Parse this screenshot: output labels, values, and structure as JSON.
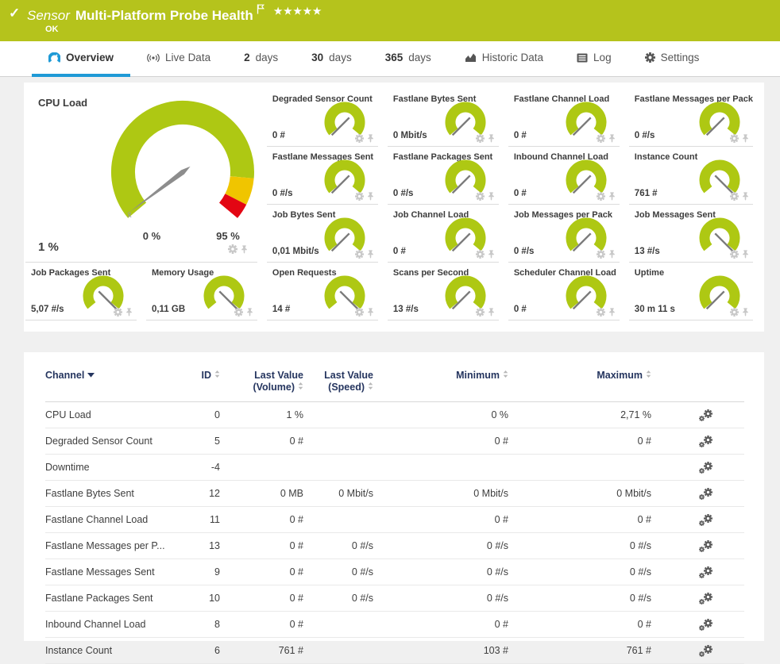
{
  "theme": {
    "header_green": "#b5c31c",
    "accent_blue": "#1f9ad6",
    "table_header_navy": "#25355f",
    "gauge_green": "#aec813",
    "gauge_yellow": "#f0c500",
    "gauge_red": "#e30613"
  },
  "header": {
    "status_icon": "✓",
    "kind_label": "Sensor",
    "title": "Multi-Platform Probe Health",
    "stars": "★★★★★",
    "status": "OK"
  },
  "tabs": [
    {
      "label": "Overview",
      "icon": "gauge-icon",
      "active": true
    },
    {
      "label": "Live Data",
      "icon": "live-icon"
    },
    {
      "num": "2",
      "label": "days"
    },
    {
      "num": "30",
      "label": "days"
    },
    {
      "num": "365",
      "label": "days"
    },
    {
      "label": "Historic Data",
      "icon": "chart-icon"
    },
    {
      "label": "Log",
      "icon": "log-icon"
    },
    {
      "label": "Settings",
      "icon": "gear-icon"
    }
  ],
  "cpu_gauge": {
    "title": "CPU Load",
    "value": "1 %",
    "min_label": "0 %",
    "max_label": "95 %",
    "avg_marker": "x̄",
    "needle_angle": 217
  },
  "gauges": {
    "top": [
      {
        "title": "Degraded Sensor Count",
        "value": "0 #",
        "needle": 225
      },
      {
        "title": "Fastlane Bytes Sent",
        "value": "0 Mbit/s",
        "needle": 225
      },
      {
        "title": "Fastlane Channel Load",
        "value": "0 #",
        "needle": 225
      },
      {
        "title": "Fastlane Messages per Pack",
        "value": "0 #/s",
        "needle": 225
      },
      {
        "title": "Fastlane Messages Sent",
        "value": "0 #/s",
        "needle": 225
      },
      {
        "title": "Fastlane Packages Sent",
        "value": "0 #/s",
        "needle": 225
      },
      {
        "title": "Inbound Channel Load",
        "value": "0 #",
        "needle": 225
      },
      {
        "title": "Instance Count",
        "value": "761 #",
        "needle": 315
      },
      {
        "title": "Job Bytes Sent",
        "value": "0,01 Mbit/s",
        "needle": 225
      },
      {
        "title": "Job Channel Load",
        "value": "0 #",
        "needle": 225
      },
      {
        "title": "Job Messages per Pack",
        "value": "0 #/s",
        "needle": 225
      },
      {
        "title": "Job Messages Sent",
        "value": "13 #/s",
        "needle": 315
      }
    ],
    "bottom": [
      {
        "title": "Job Packages Sent",
        "value": "5,07 #/s",
        "needle": 315
      },
      {
        "title": "Memory Usage",
        "value": "0,11 GB",
        "needle": 315
      },
      {
        "title": "Open Requests",
        "value": "14 #",
        "needle": 315
      },
      {
        "title": "Scans per Second",
        "value": "13 #/s",
        "needle": 225
      },
      {
        "title": "Scheduler Channel Load",
        "value": "0 #",
        "needle": 225
      },
      {
        "title": "Uptime",
        "value": "30 m 11 s",
        "needle": 225
      }
    ]
  },
  "table": {
    "headers": [
      {
        "lines": [
          "Channel"
        ],
        "sort": "desc"
      },
      {
        "lines": [
          "ID"
        ],
        "sort": "both"
      },
      {
        "lines": [
          "Last Value",
          "(Volume)"
        ],
        "sort": "both"
      },
      {
        "lines": [
          "Last Value",
          "(Speed)"
        ],
        "sort": "both"
      },
      {
        "lines": [
          "Minimum"
        ],
        "sort": "both"
      },
      {
        "lines": [
          "Maximum"
        ],
        "sort": "both"
      }
    ],
    "rows": [
      {
        "channel": "CPU Load",
        "id": "0",
        "vol": "1 %",
        "speed": "",
        "min": "0 %",
        "max": "2,71 %"
      },
      {
        "channel": "Degraded Sensor Count",
        "id": "5",
        "vol": "0 #",
        "speed": "",
        "min": "0 #",
        "max": "0 #"
      },
      {
        "channel": "Downtime",
        "id": "-4",
        "vol": "",
        "speed": "",
        "min": "",
        "max": ""
      },
      {
        "channel": "Fastlane Bytes Sent",
        "id": "12",
        "vol": "0 MB",
        "speed": "0 Mbit/s",
        "min": "0 Mbit/s",
        "max": "0 Mbit/s"
      },
      {
        "channel": "Fastlane Channel Load",
        "id": "11",
        "vol": "0 #",
        "speed": "",
        "min": "0 #",
        "max": "0 #"
      },
      {
        "channel": "Fastlane Messages per P...",
        "id": "13",
        "vol": "0 #",
        "speed": "0 #/s",
        "min": "0 #/s",
        "max": "0 #/s"
      },
      {
        "channel": "Fastlane Messages Sent",
        "id": "9",
        "vol": "0 #",
        "speed": "0 #/s",
        "min": "0 #/s",
        "max": "0 #/s"
      },
      {
        "channel": "Fastlane Packages Sent",
        "id": "10",
        "vol": "0 #",
        "speed": "0 #/s",
        "min": "0 #/s",
        "max": "0 #/s"
      },
      {
        "channel": "Inbound Channel Load",
        "id": "8",
        "vol": "0 #",
        "speed": "",
        "min": "0 #",
        "max": "0 #"
      },
      {
        "channel": "Instance Count",
        "id": "6",
        "vol": "761 #",
        "speed": "",
        "min": "103 #",
        "max": "761 #"
      }
    ]
  }
}
